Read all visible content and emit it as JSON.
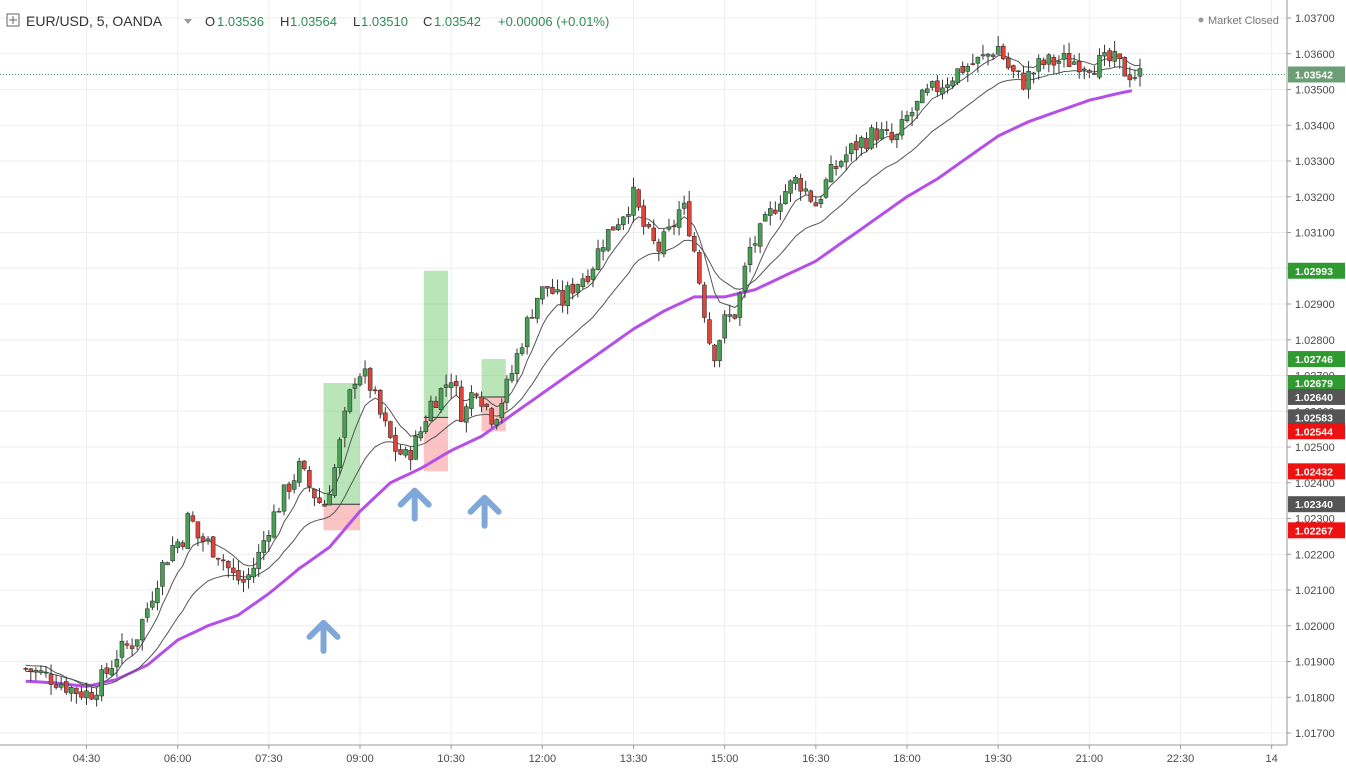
{
  "header": {
    "symbol": "EUR/USD, 5, OANDA",
    "open_label": "O",
    "open": "1.03536",
    "high_label": "H",
    "high": "1.03564",
    "low_label": "L",
    "low": "1.03510",
    "close_label": "C",
    "close": "1.03542",
    "change": "+0.00006 (+0.01%)",
    "market_status": "Market Closed"
  },
  "colors": {
    "up": "#4a9e55",
    "down": "#d9473c",
    "wick": "#333333",
    "ema_slow": "#b64fe8",
    "ema_fast": "#555555",
    "arrow": "#7fa8d9",
    "grid": "#eeeeee",
    "tp_zone": "#7fcf7f",
    "sl_zone": "#f7a4a4",
    "tag_green": "#2f9a2f",
    "tag_red": "#ee1111",
    "tag_gray": "#555555",
    "tag_current": "#6b9e74"
  },
  "chart_data": {
    "type": "candlestick",
    "title": "EUR/USD, 5, OANDA",
    "y_ticks": [
      "1.03700",
      "1.03600",
      "1.03500",
      "1.03400",
      "1.03300",
      "1.03200",
      "1.03100",
      "1.03000",
      "1.02900",
      "1.02800",
      "1.02700",
      "1.02600",
      "1.02500",
      "1.02400",
      "1.02300",
      "1.02200",
      "1.02100",
      "1.02000",
      "1.01900",
      "1.01800",
      "1.01700"
    ],
    "ylim": [
      1.01665,
      1.03745
    ],
    "x_ticks": [
      "04:30",
      "06:00",
      "07:30",
      "09:00",
      "10:30",
      "12:00",
      "13:30",
      "15:00",
      "16:30",
      "18:00",
      "19:30",
      "21:00",
      "22:30",
      "14"
    ],
    "x_start_hour": 3.5,
    "x_end_hour": 24.4,
    "last_price": 1.03542,
    "price_tags": [
      {
        "value": 1.03542,
        "label": "1.03542",
        "kind": "current"
      },
      {
        "value": 1.02993,
        "label": "1.02993",
        "kind": "green"
      },
      {
        "value": 1.02746,
        "label": "1.02746",
        "kind": "green"
      },
      {
        "value": 1.02679,
        "label": "1.02679",
        "kind": "green"
      },
      {
        "value": 1.0264,
        "label": "1.02640",
        "kind": "gray"
      },
      {
        "value": 1.02583,
        "label": "1.02583",
        "kind": "gray"
      },
      {
        "value": 1.02544,
        "label": "1.02544",
        "kind": "red"
      },
      {
        "value": 1.02432,
        "label": "1.02432",
        "kind": "red"
      },
      {
        "value": 1.0234,
        "label": "1.02340",
        "kind": "gray"
      },
      {
        "value": 1.02267,
        "label": "1.02267",
        "kind": "red"
      }
    ],
    "trade_zones": [
      {
        "t_start": 8.4,
        "t_end": 9.0,
        "entry": 1.0234,
        "target": 1.02679,
        "stop": 1.02267
      },
      {
        "t_start": 10.05,
        "t_end": 10.45,
        "entry": 1.02583,
        "target": 1.02993,
        "stop": 1.02432
      },
      {
        "t_start": 11.0,
        "t_end": 11.4,
        "entry": 1.0264,
        "target": 1.02746,
        "stop": 1.02544
      }
    ],
    "arrows": [
      {
        "t": 8.4,
        "price": 1.0198
      },
      {
        "t": 9.9,
        "price": 1.0235
      },
      {
        "t": 11.05,
        "price": 1.0233
      }
    ],
    "price_path": [
      [
        3.5,
        1.0188
      ],
      [
        4.0,
        1.0185
      ],
      [
        4.3,
        1.0182
      ],
      [
        4.55,
        1.0181
      ],
      [
        4.8,
        1.0186
      ],
      [
        5.0,
        1.0192
      ],
      [
        5.3,
        1.0196
      ],
      [
        5.5,
        1.0205
      ],
      [
        5.7,
        1.0215
      ],
      [
        5.9,
        1.0222
      ],
      [
        6.1,
        1.0225
      ],
      [
        6.2,
        1.0232
      ],
      [
        6.3,
        1.0225
      ],
      [
        6.5,
        1.0223
      ],
      [
        6.7,
        1.022
      ],
      [
        6.9,
        1.0214
      ],
      [
        7.1,
        1.0212
      ],
      [
        7.3,
        1.0218
      ],
      [
        7.5,
        1.0228
      ],
      [
        7.7,
        1.0235
      ],
      [
        7.85,
        1.024
      ],
      [
        8.0,
        1.0244
      ],
      [
        8.2,
        1.0238
      ],
      [
        8.4,
        1.0233
      ],
      [
        8.6,
        1.0245
      ],
      [
        8.8,
        1.0262
      ],
      [
        8.95,
        1.0272
      ],
      [
        9.15,
        1.0268
      ],
      [
        9.35,
        1.0258
      ],
      [
        9.55,
        1.025
      ],
      [
        9.75,
        1.0247
      ],
      [
        9.95,
        1.0252
      ],
      [
        10.15,
        1.0262
      ],
      [
        10.35,
        1.0266
      ],
      [
        10.5,
        1.027
      ],
      [
        10.7,
        1.0258
      ],
      [
        10.9,
        1.0268
      ],
      [
        11.05,
        1.0262
      ],
      [
        11.2,
        1.0258
      ],
      [
        11.45,
        1.0268
      ],
      [
        11.7,
        1.0282
      ],
      [
        11.9,
        1.0292
      ],
      [
        12.1,
        1.0295
      ],
      [
        12.3,
        1.029
      ],
      [
        12.5,
        1.0295
      ],
      [
        12.8,
        1.03
      ],
      [
        13.0,
        1.0308
      ],
      [
        13.3,
        1.0315
      ],
      [
        13.5,
        1.032
      ],
      [
        13.7,
        1.031
      ],
      [
        13.9,
        1.0305
      ],
      [
        14.1,
        1.031
      ],
      [
        14.3,
        1.0318
      ],
      [
        14.45,
        1.031
      ],
      [
        14.6,
        1.0295
      ],
      [
        14.8,
        1.0275
      ],
      [
        15.0,
        1.0285
      ],
      [
        15.2,
        1.0288
      ],
      [
        15.4,
        1.0305
      ],
      [
        15.6,
        1.031
      ],
      [
        15.9,
        1.032
      ],
      [
        16.2,
        1.0325
      ],
      [
        16.5,
        1.0318
      ],
      [
        16.7,
        1.0325
      ],
      [
        16.9,
        1.033
      ],
      [
        17.2,
        1.0335
      ],
      [
        17.5,
        1.0338
      ],
      [
        17.8,
        1.0335
      ],
      [
        18.0,
        1.0342
      ],
      [
        18.3,
        1.0348
      ],
      [
        18.6,
        1.0352
      ],
      [
        18.9,
        1.0356
      ],
      [
        19.2,
        1.0358
      ],
      [
        19.5,
        1.0362
      ],
      [
        19.7,
        1.0355
      ],
      [
        19.9,
        1.0352
      ],
      [
        20.2,
        1.0357
      ],
      [
        20.5,
        1.0358
      ],
      [
        20.8,
        1.0358
      ],
      [
        21.1,
        1.0357
      ],
      [
        21.4,
        1.0358
      ],
      [
        21.6,
        1.0355
      ],
      [
        21.8,
        1.0354
      ]
    ],
    "ema_slow": [
      [
        3.5,
        1.01845
      ],
      [
        4.0,
        1.0184
      ],
      [
        4.5,
        1.0183
      ],
      [
        5.0,
        1.0185
      ],
      [
        5.5,
        1.0189
      ],
      [
        6.0,
        1.0196
      ],
      [
        6.5,
        1.02
      ],
      [
        7.0,
        1.0203
      ],
      [
        7.5,
        1.0209
      ],
      [
        8.0,
        1.0216
      ],
      [
        8.5,
        1.0222
      ],
      [
        9.0,
        1.0232
      ],
      [
        9.5,
        1.024
      ],
      [
        10.0,
        1.0244
      ],
      [
        10.5,
        1.0249
      ],
      [
        11.0,
        1.0253
      ],
      [
        11.5,
        1.0259
      ],
      [
        12.0,
        1.0265
      ],
      [
        12.5,
        1.0271
      ],
      [
        13.0,
        1.0277
      ],
      [
        13.5,
        1.0283
      ],
      [
        14.0,
        1.0288
      ],
      [
        14.5,
        1.0292
      ],
      [
        15.0,
        1.0292
      ],
      [
        15.5,
        1.0294
      ],
      [
        16.0,
        1.0298
      ],
      [
        16.5,
        1.0302
      ],
      [
        17.0,
        1.0308
      ],
      [
        17.5,
        1.0314
      ],
      [
        18.0,
        1.032
      ],
      [
        18.5,
        1.0325
      ],
      [
        19.0,
        1.0331
      ],
      [
        19.5,
        1.0337
      ],
      [
        20.0,
        1.0341
      ],
      [
        20.5,
        1.0344
      ],
      [
        21.0,
        1.0347
      ],
      [
        21.5,
        1.0349
      ],
      [
        21.8,
        1.035
      ]
    ],
    "ema_fast_offsets": [
      -0.0002,
      0.0003
    ]
  }
}
